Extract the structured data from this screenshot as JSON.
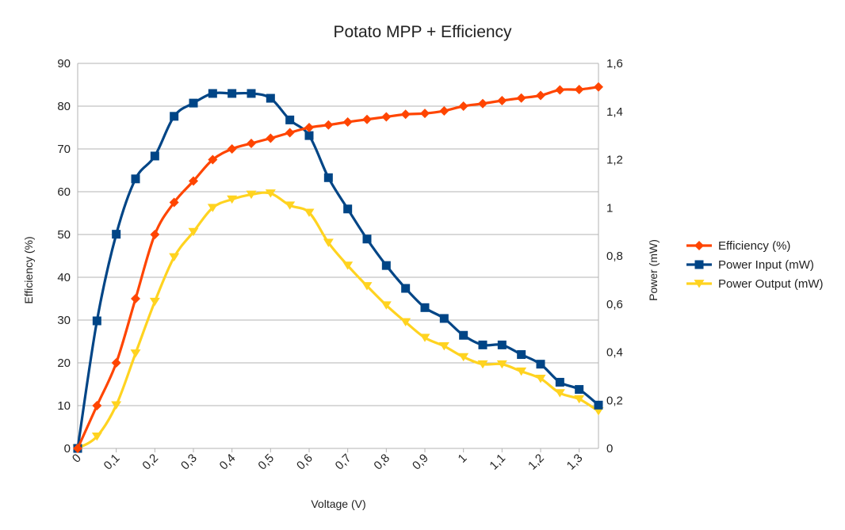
{
  "chart_data": {
    "type": "line",
    "title": "Potato MPP + Efficiency",
    "xlabel": "Voltage (V)",
    "ylabel": "Efficiency (%)",
    "y2label": "Power (mW)",
    "xlim": [
      0,
      1.35
    ],
    "ylim": [
      0,
      90
    ],
    "y2lim": [
      0,
      1.6
    ],
    "x_ticks": [
      "0",
      "0,1",
      "0,2",
      "0,3",
      "0,4",
      "0,5",
      "0,6",
      "0,7",
      "0,8",
      "0,9",
      "1",
      "1,1",
      "1,2",
      "1,3"
    ],
    "y_ticks": [
      "0",
      "10",
      "20",
      "30",
      "40",
      "50",
      "60",
      "70",
      "80",
      "90"
    ],
    "y2_ticks": [
      "0",
      "0,2",
      "0,4",
      "0,6",
      "0,8",
      "1",
      "1,2",
      "1,4",
      "1,6"
    ],
    "grid": true,
    "legend_position": "right",
    "x": [
      0,
      0.05,
      0.1,
      0.15,
      0.2,
      0.25,
      0.3,
      0.35,
      0.4,
      0.45,
      0.5,
      0.55,
      0.6,
      0.65,
      0.7,
      0.75,
      0.8,
      0.85,
      0.9,
      0.95,
      1.0,
      1.05,
      1.1,
      1.15,
      1.2,
      1.25,
      1.3,
      1.35
    ],
    "series": [
      {
        "name": "Efficiency (%)",
        "axis": "left",
        "color": "#ff4500",
        "marker": "diamond",
        "values": [
          0,
          10,
          20,
          35,
          50,
          57.5,
          62.5,
          67.5,
          70,
          71.3,
          72.5,
          73.8,
          75,
          75.6,
          76.3,
          76.9,
          77.5,
          78.1,
          78.3,
          78.9,
          80,
          80.6,
          81.3,
          81.9,
          82.5,
          83.8,
          83.9,
          84.5
        ]
      },
      {
        "name": "Power Input (mW)",
        "axis": "right",
        "color": "#004586",
        "marker": "square",
        "values": [
          0,
          0.53,
          0.89,
          1.12,
          1.215,
          1.38,
          1.435,
          1.475,
          1.475,
          1.475,
          1.455,
          1.365,
          1.3,
          1.125,
          0.995,
          0.87,
          0.76,
          0.665,
          0.585,
          0.54,
          0.47,
          0.43,
          0.43,
          0.39,
          0.35,
          0.275,
          0.245,
          0.18
        ]
      },
      {
        "name": "Power Output (mW)",
        "axis": "right",
        "color": "#ffd320",
        "marker": "triangle-down",
        "values": [
          0,
          0.05,
          0.18,
          0.395,
          0.61,
          0.795,
          0.9,
          1.0,
          1.035,
          1.055,
          1.06,
          1.01,
          0.98,
          0.855,
          0.76,
          0.675,
          0.595,
          0.525,
          0.46,
          0.425,
          0.38,
          0.35,
          0.35,
          0.32,
          0.29,
          0.23,
          0.205,
          0.155
        ]
      }
    ]
  }
}
